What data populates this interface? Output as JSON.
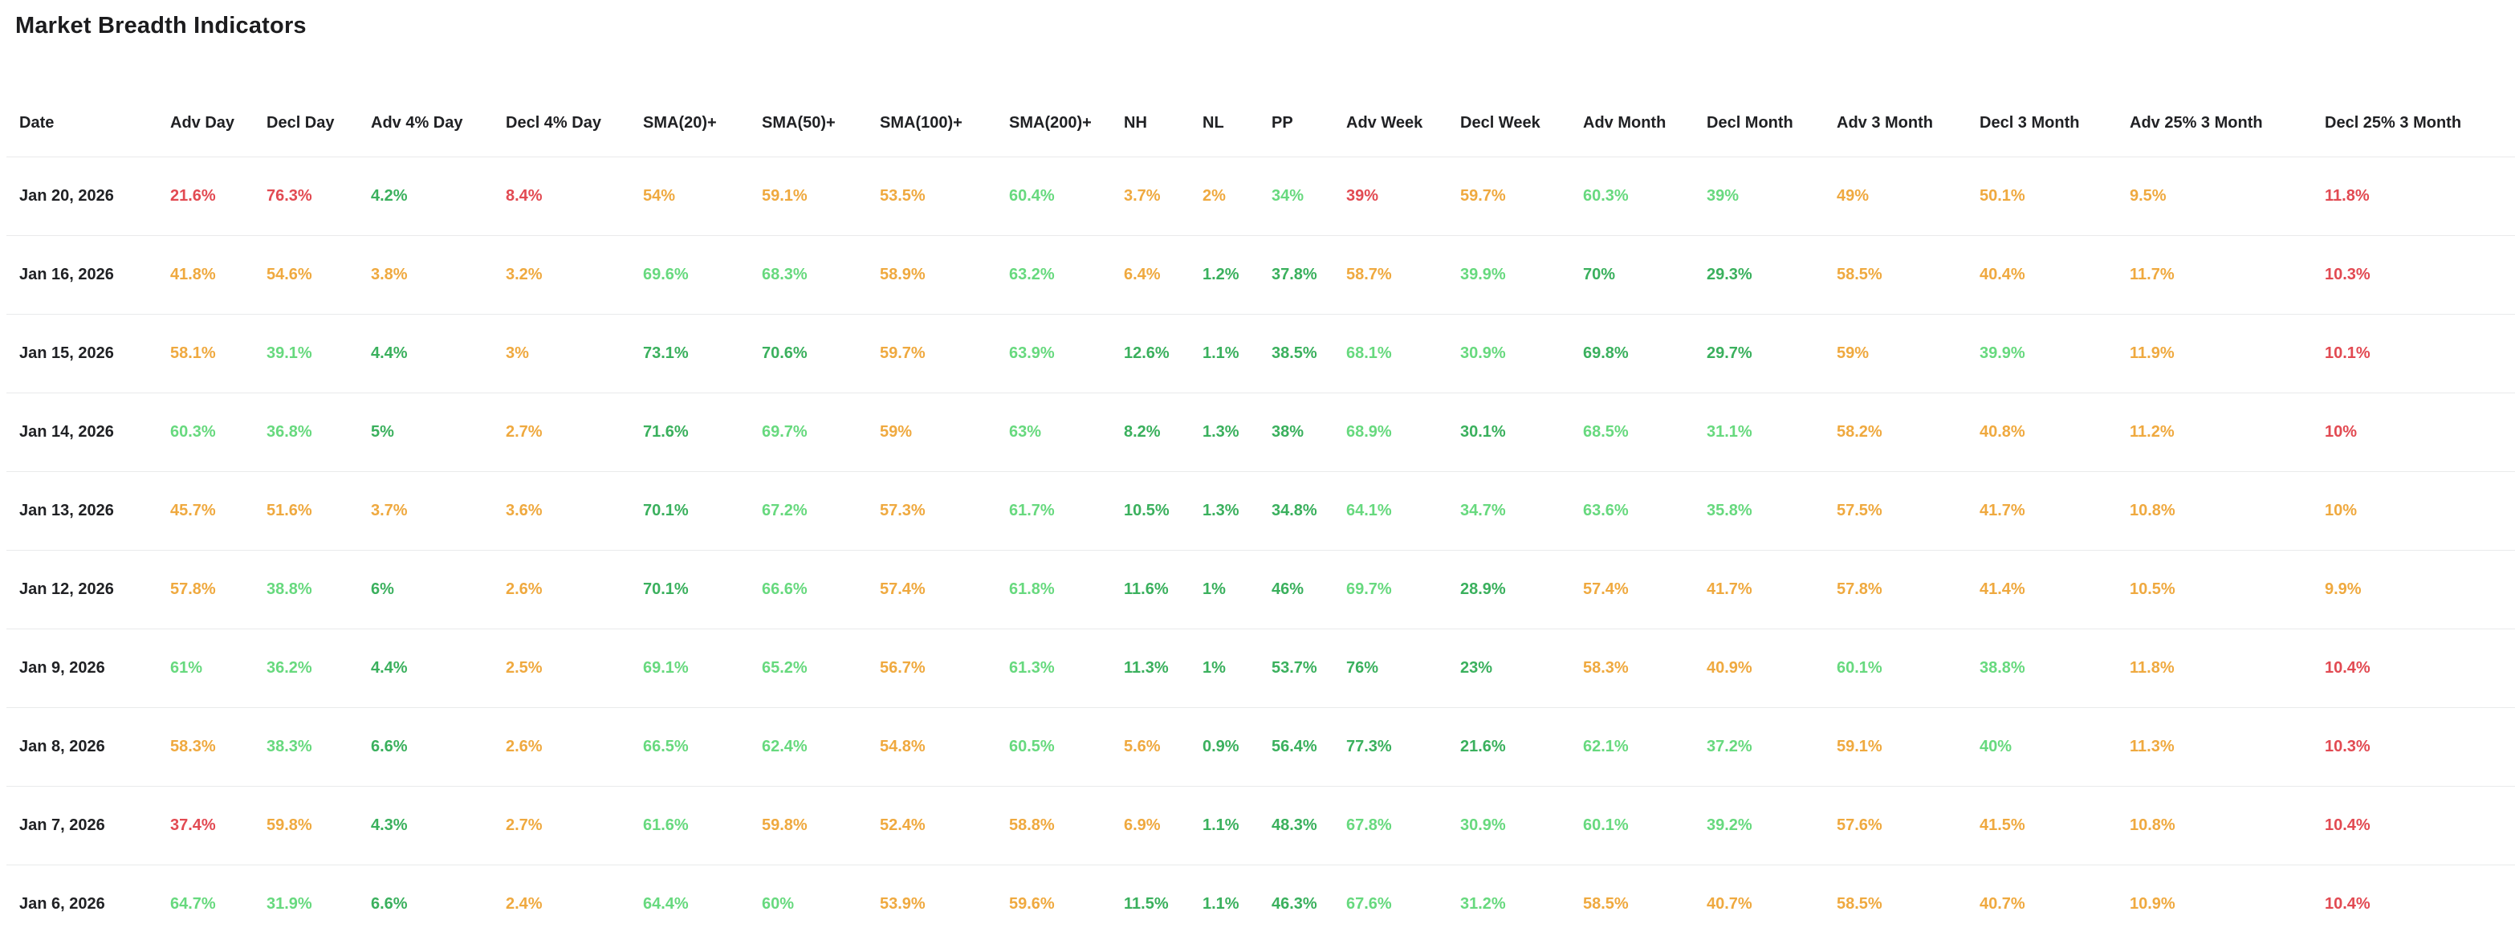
{
  "title": "Market Breadth Indicators",
  "colors": {
    "red": "#e24a52",
    "orange": "#efa93f",
    "green": "#67d97e",
    "green_strong": "#3ab05d",
    "text_dark": "#202124",
    "divider": "#e9eaeb"
  },
  "chart_data": {
    "type": "table",
    "title": "Market Breadth Indicators",
    "columns": [
      "Date",
      "Adv Day",
      "Decl Day",
      "Adv 4% Day",
      "Decl 4% Day",
      "SMA(20)+",
      "SMA(50)+",
      "SMA(100)+",
      "SMA(200)+",
      "NH",
      "NL",
      "PP",
      "Adv Week",
      "Decl Week",
      "Adv Month",
      "Decl Month",
      "Adv 3 Month",
      "Decl 3 Month",
      "Adv 25% 3 Month",
      "Decl 25% 3 Month"
    ],
    "rows": [
      {
        "date": "Jan 20, 2026",
        "cells": [
          {
            "v": "21.6%",
            "c": "red"
          },
          {
            "v": "76.3%",
            "c": "red"
          },
          {
            "v": "4.2%",
            "c": "green_strong"
          },
          {
            "v": "8.4%",
            "c": "red"
          },
          {
            "v": "54%",
            "c": "orange"
          },
          {
            "v": "59.1%",
            "c": "orange"
          },
          {
            "v": "53.5%",
            "c": "orange"
          },
          {
            "v": "60.4%",
            "c": "green"
          },
          {
            "v": "3.7%",
            "c": "orange"
          },
          {
            "v": "2%",
            "c": "orange"
          },
          {
            "v": "34%",
            "c": "green"
          },
          {
            "v": "39%",
            "c": "red"
          },
          {
            "v": "59.7%",
            "c": "orange"
          },
          {
            "v": "60.3%",
            "c": "green"
          },
          {
            "v": "39%",
            "c": "green"
          },
          {
            "v": "49%",
            "c": "orange"
          },
          {
            "v": "50.1%",
            "c": "orange"
          },
          {
            "v": "9.5%",
            "c": "orange"
          },
          {
            "v": "11.8%",
            "c": "red"
          }
        ]
      },
      {
        "date": "Jan 16, 2026",
        "cells": [
          {
            "v": "41.8%",
            "c": "orange"
          },
          {
            "v": "54.6%",
            "c": "orange"
          },
          {
            "v": "3.8%",
            "c": "orange"
          },
          {
            "v": "3.2%",
            "c": "orange"
          },
          {
            "v": "69.6%",
            "c": "green"
          },
          {
            "v": "68.3%",
            "c": "green"
          },
          {
            "v": "58.9%",
            "c": "orange"
          },
          {
            "v": "63.2%",
            "c": "green"
          },
          {
            "v": "6.4%",
            "c": "orange"
          },
          {
            "v": "1.2%",
            "c": "green_strong"
          },
          {
            "v": "37.8%",
            "c": "green_strong"
          },
          {
            "v": "58.7%",
            "c": "orange"
          },
          {
            "v": "39.9%",
            "c": "green"
          },
          {
            "v": "70%",
            "c": "green_strong"
          },
          {
            "v": "29.3%",
            "c": "green_strong"
          },
          {
            "v": "58.5%",
            "c": "orange"
          },
          {
            "v": "40.4%",
            "c": "orange"
          },
          {
            "v": "11.7%",
            "c": "orange"
          },
          {
            "v": "10.3%",
            "c": "red"
          }
        ]
      },
      {
        "date": "Jan 15, 2026",
        "cells": [
          {
            "v": "58.1%",
            "c": "orange"
          },
          {
            "v": "39.1%",
            "c": "green"
          },
          {
            "v": "4.4%",
            "c": "green_strong"
          },
          {
            "v": "3%",
            "c": "orange"
          },
          {
            "v": "73.1%",
            "c": "green_strong"
          },
          {
            "v": "70.6%",
            "c": "green_strong"
          },
          {
            "v": "59.7%",
            "c": "orange"
          },
          {
            "v": "63.9%",
            "c": "green"
          },
          {
            "v": "12.6%",
            "c": "green_strong"
          },
          {
            "v": "1.1%",
            "c": "green_strong"
          },
          {
            "v": "38.5%",
            "c": "green_strong"
          },
          {
            "v": "68.1%",
            "c": "green"
          },
          {
            "v": "30.9%",
            "c": "green"
          },
          {
            "v": "69.8%",
            "c": "green_strong"
          },
          {
            "v": "29.7%",
            "c": "green_strong"
          },
          {
            "v": "59%",
            "c": "orange"
          },
          {
            "v": "39.9%",
            "c": "green"
          },
          {
            "v": "11.9%",
            "c": "orange"
          },
          {
            "v": "10.1%",
            "c": "red"
          }
        ]
      },
      {
        "date": "Jan 14, 2026",
        "cells": [
          {
            "v": "60.3%",
            "c": "green"
          },
          {
            "v": "36.8%",
            "c": "green"
          },
          {
            "v": "5%",
            "c": "green_strong"
          },
          {
            "v": "2.7%",
            "c": "orange"
          },
          {
            "v": "71.6%",
            "c": "green_strong"
          },
          {
            "v": "69.7%",
            "c": "green"
          },
          {
            "v": "59%",
            "c": "orange"
          },
          {
            "v": "63%",
            "c": "green"
          },
          {
            "v": "8.2%",
            "c": "green_strong"
          },
          {
            "v": "1.3%",
            "c": "green_strong"
          },
          {
            "v": "38%",
            "c": "green_strong"
          },
          {
            "v": "68.9%",
            "c": "green"
          },
          {
            "v": "30.1%",
            "c": "green_strong"
          },
          {
            "v": "68.5%",
            "c": "green"
          },
          {
            "v": "31.1%",
            "c": "green"
          },
          {
            "v": "58.2%",
            "c": "orange"
          },
          {
            "v": "40.8%",
            "c": "orange"
          },
          {
            "v": "11.2%",
            "c": "orange"
          },
          {
            "v": "10%",
            "c": "red"
          }
        ]
      },
      {
        "date": "Jan 13, 2026",
        "cells": [
          {
            "v": "45.7%",
            "c": "orange"
          },
          {
            "v": "51.6%",
            "c": "orange"
          },
          {
            "v": "3.7%",
            "c": "orange"
          },
          {
            "v": "3.6%",
            "c": "orange"
          },
          {
            "v": "70.1%",
            "c": "green_strong"
          },
          {
            "v": "67.2%",
            "c": "green"
          },
          {
            "v": "57.3%",
            "c": "orange"
          },
          {
            "v": "61.7%",
            "c": "green"
          },
          {
            "v": "10.5%",
            "c": "green_strong"
          },
          {
            "v": "1.3%",
            "c": "green_strong"
          },
          {
            "v": "34.8%",
            "c": "green_strong"
          },
          {
            "v": "64.1%",
            "c": "green"
          },
          {
            "v": "34.7%",
            "c": "green"
          },
          {
            "v": "63.6%",
            "c": "green"
          },
          {
            "v": "35.8%",
            "c": "green"
          },
          {
            "v": "57.5%",
            "c": "orange"
          },
          {
            "v": "41.7%",
            "c": "orange"
          },
          {
            "v": "10.8%",
            "c": "orange"
          },
          {
            "v": "10%",
            "c": "orange"
          }
        ]
      },
      {
        "date": "Jan 12, 2026",
        "cells": [
          {
            "v": "57.8%",
            "c": "orange"
          },
          {
            "v": "38.8%",
            "c": "green"
          },
          {
            "v": "6%",
            "c": "green_strong"
          },
          {
            "v": "2.6%",
            "c": "orange"
          },
          {
            "v": "70.1%",
            "c": "green_strong"
          },
          {
            "v": "66.6%",
            "c": "green"
          },
          {
            "v": "57.4%",
            "c": "orange"
          },
          {
            "v": "61.8%",
            "c": "green"
          },
          {
            "v": "11.6%",
            "c": "green_strong"
          },
          {
            "v": "1%",
            "c": "green_strong"
          },
          {
            "v": "46%",
            "c": "green_strong"
          },
          {
            "v": "69.7%",
            "c": "green"
          },
          {
            "v": "28.9%",
            "c": "green_strong"
          },
          {
            "v": "57.4%",
            "c": "orange"
          },
          {
            "v": "41.7%",
            "c": "orange"
          },
          {
            "v": "57.8%",
            "c": "orange"
          },
          {
            "v": "41.4%",
            "c": "orange"
          },
          {
            "v": "10.5%",
            "c": "orange"
          },
          {
            "v": "9.9%",
            "c": "orange"
          }
        ]
      },
      {
        "date": "Jan 9, 2026",
        "cells": [
          {
            "v": "61%",
            "c": "green"
          },
          {
            "v": "36.2%",
            "c": "green"
          },
          {
            "v": "4.4%",
            "c": "green_strong"
          },
          {
            "v": "2.5%",
            "c": "orange"
          },
          {
            "v": "69.1%",
            "c": "green"
          },
          {
            "v": "65.2%",
            "c": "green"
          },
          {
            "v": "56.7%",
            "c": "orange"
          },
          {
            "v": "61.3%",
            "c": "green"
          },
          {
            "v": "11.3%",
            "c": "green_strong"
          },
          {
            "v": "1%",
            "c": "green_strong"
          },
          {
            "v": "53.7%",
            "c": "green_strong"
          },
          {
            "v": "76%",
            "c": "green_strong"
          },
          {
            "v": "23%",
            "c": "green_strong"
          },
          {
            "v": "58.3%",
            "c": "orange"
          },
          {
            "v": "40.9%",
            "c": "orange"
          },
          {
            "v": "60.1%",
            "c": "green"
          },
          {
            "v": "38.8%",
            "c": "green"
          },
          {
            "v": "11.8%",
            "c": "orange"
          },
          {
            "v": "10.4%",
            "c": "red"
          }
        ]
      },
      {
        "date": "Jan 8, 2026",
        "cells": [
          {
            "v": "58.3%",
            "c": "orange"
          },
          {
            "v": "38.3%",
            "c": "green"
          },
          {
            "v": "6.6%",
            "c": "green_strong"
          },
          {
            "v": "2.6%",
            "c": "orange"
          },
          {
            "v": "66.5%",
            "c": "green"
          },
          {
            "v": "62.4%",
            "c": "green"
          },
          {
            "v": "54.8%",
            "c": "orange"
          },
          {
            "v": "60.5%",
            "c": "green"
          },
          {
            "v": "5.6%",
            "c": "orange"
          },
          {
            "v": "0.9%",
            "c": "green_strong"
          },
          {
            "v": "56.4%",
            "c": "green_strong"
          },
          {
            "v": "77.3%",
            "c": "green_strong"
          },
          {
            "v": "21.6%",
            "c": "green_strong"
          },
          {
            "v": "62.1%",
            "c": "green"
          },
          {
            "v": "37.2%",
            "c": "green"
          },
          {
            "v": "59.1%",
            "c": "orange"
          },
          {
            "v": "40%",
            "c": "green"
          },
          {
            "v": "11.3%",
            "c": "orange"
          },
          {
            "v": "10.3%",
            "c": "red"
          }
        ]
      },
      {
        "date": "Jan 7, 2026",
        "cells": [
          {
            "v": "37.4%",
            "c": "red"
          },
          {
            "v": "59.8%",
            "c": "orange"
          },
          {
            "v": "4.3%",
            "c": "green_strong"
          },
          {
            "v": "2.7%",
            "c": "orange"
          },
          {
            "v": "61.6%",
            "c": "green"
          },
          {
            "v": "59.8%",
            "c": "orange"
          },
          {
            "v": "52.4%",
            "c": "orange"
          },
          {
            "v": "58.8%",
            "c": "orange"
          },
          {
            "v": "6.9%",
            "c": "orange"
          },
          {
            "v": "1.1%",
            "c": "green_strong"
          },
          {
            "v": "48.3%",
            "c": "green_strong"
          },
          {
            "v": "67.8%",
            "c": "green"
          },
          {
            "v": "30.9%",
            "c": "green"
          },
          {
            "v": "60.1%",
            "c": "green"
          },
          {
            "v": "39.2%",
            "c": "green"
          },
          {
            "v": "57.6%",
            "c": "orange"
          },
          {
            "v": "41.5%",
            "c": "orange"
          },
          {
            "v": "10.8%",
            "c": "orange"
          },
          {
            "v": "10.4%",
            "c": "red"
          }
        ]
      },
      {
        "date": "Jan 6, 2026",
        "cells": [
          {
            "v": "64.7%",
            "c": "green"
          },
          {
            "v": "31.9%",
            "c": "green"
          },
          {
            "v": "6.6%",
            "c": "green_strong"
          },
          {
            "v": "2.4%",
            "c": "orange"
          },
          {
            "v": "64.4%",
            "c": "green"
          },
          {
            "v": "60%",
            "c": "green"
          },
          {
            "v": "53.9%",
            "c": "orange"
          },
          {
            "v": "59.6%",
            "c": "orange"
          },
          {
            "v": "11.5%",
            "c": "green_strong"
          },
          {
            "v": "1.1%",
            "c": "green_strong"
          },
          {
            "v": "46.3%",
            "c": "green_strong"
          },
          {
            "v": "67.6%",
            "c": "green"
          },
          {
            "v": "31.2%",
            "c": "green"
          },
          {
            "v": "58.5%",
            "c": "orange"
          },
          {
            "v": "40.7%",
            "c": "orange"
          },
          {
            "v": "58.5%",
            "c": "orange"
          },
          {
            "v": "40.7%",
            "c": "orange"
          },
          {
            "v": "10.9%",
            "c": "orange"
          },
          {
            "v": "10.4%",
            "c": "red"
          }
        ]
      }
    ]
  }
}
